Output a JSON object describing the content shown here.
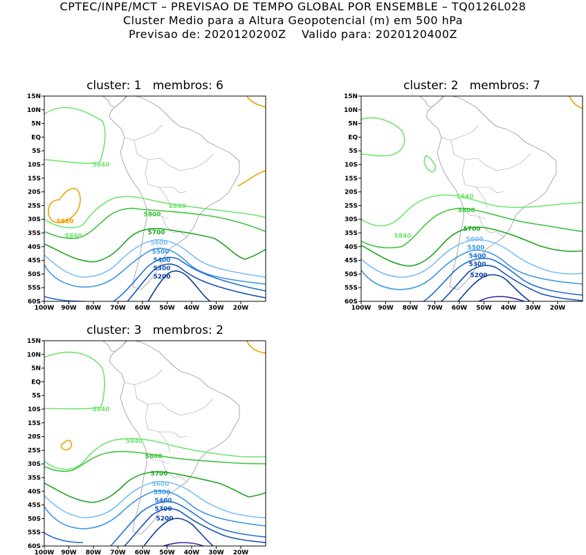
{
  "header": {
    "line1": "CPTEC/INPE/MCT – PREVISAO DE TEMPO GLOBAL POR ENSEMBLE – TQ0126L028",
    "line2": "Cluster Medio para a Altura Geopotencial (m) em 500 hPa",
    "line3": "Previsao de: 2020120200Z    Valido para: 2020120400Z"
  },
  "axes": {
    "lat_ticks": [
      "15N",
      "10N",
      "5N",
      "EQ",
      "5S",
      "10S",
      "15S",
      "20S",
      "25S",
      "30S",
      "35S",
      "40S",
      "45S",
      "50S",
      "55S",
      "60S"
    ],
    "lon_ticks": [
      "100W",
      "90W",
      "80W",
      "70W",
      "60W",
      "50W",
      "40W",
      "30W",
      "20W"
    ]
  },
  "panels": [
    {
      "title": "cluster: 1   membros: 6",
      "labels": {
        "l5880": "5880",
        "l5840a": "5840",
        "l5840b": "5840",
        "l5840c": "5840",
        "l5800": "5800",
        "l5700": "5700",
        "l5600": "5600",
        "l5500": "5500",
        "l5400": "5400",
        "l5300": "5300",
        "l5200": "5200"
      }
    },
    {
      "title": "cluster: 2   membros: 7",
      "labels": {
        "l5840a": "5840",
        "l5840b": "5840",
        "l5800": "5800",
        "l5700": "5700",
        "l5600": "5600",
        "l5500": "5500",
        "l5400": "5400",
        "l5300": "5300",
        "l5200": "5200"
      }
    },
    {
      "title": "cluster: 3   membros: 2",
      "labels": {
        "l5840a": "5840",
        "l5840b": "5840",
        "l5800": "5800",
        "l5700": "5700",
        "l5600": "5600",
        "l5500": "5500",
        "l5400": "5400",
        "l5300": "5300",
        "l5200": "5200"
      }
    }
  ],
  "colors": {
    "c5880": "#f0a000",
    "c5840": "#6ee46e",
    "c5800": "#3cc23c",
    "c5700": "#1ca51c",
    "c5600": "#78bdf5",
    "c5500": "#3c96e6",
    "c5400": "#1e6ed2",
    "c5300": "#1450b4",
    "c5200": "#0a3a9a",
    "c5100": "#3223a0",
    "coast": "#a0a0a0"
  }
}
